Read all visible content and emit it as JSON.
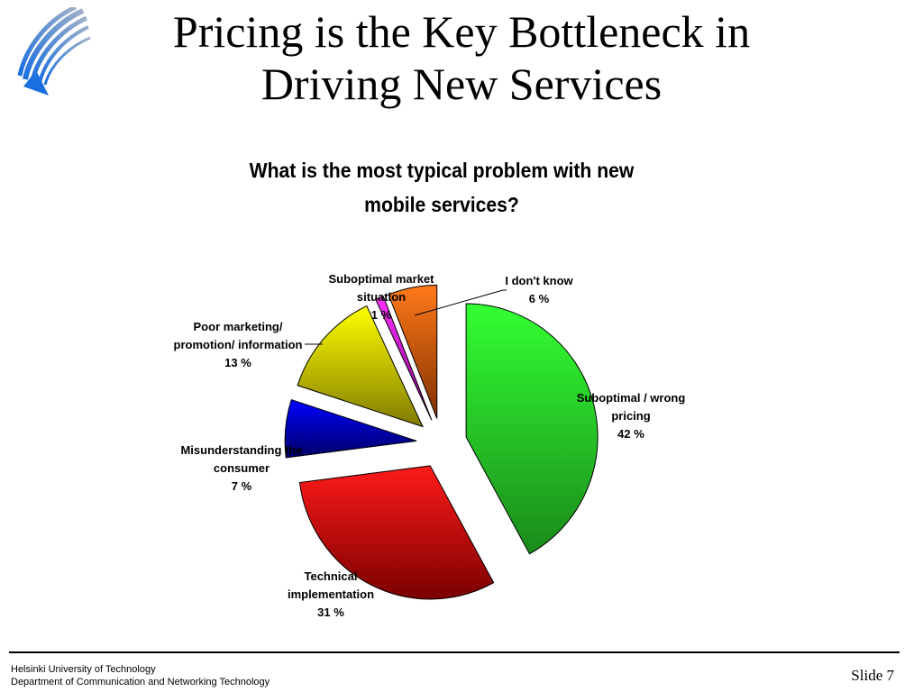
{
  "slide": {
    "title_lines": [
      "Pricing is the Key Bottleneck in",
      "Driving New Services"
    ],
    "footer": {
      "university": "Helsinki University of Technology",
      "department": "Department of Communication and Networking Technology",
      "slide_label": "Slide 7"
    },
    "logo_icon": "university-logo-icon"
  },
  "chart_data": {
    "type": "pie",
    "title_lines": [
      "What is the most typical problem with new",
      "mobile services?"
    ],
    "exploded": true,
    "slices": [
      {
        "label_lines": [
          "Suboptimal / wrong",
          "pricing"
        ],
        "value_label": "42 %",
        "value": 42,
        "color_light": "#33ff33",
        "color_dark": "#1a8a1a"
      },
      {
        "label_lines": [
          "Technical",
          "implementation"
        ],
        "value_label": "31 %",
        "value": 31,
        "color_light": "#ff1a1a",
        "color_dark": "#7a0000"
      },
      {
        "label_lines": [
          "Misunderstanding the",
          "consumer"
        ],
        "value_label": "7 %",
        "value": 7,
        "color_light": "#0000ff",
        "color_dark": "#000066"
      },
      {
        "label_lines": [
          "Poor marketing/",
          "promotion/ information"
        ],
        "value_label": "13 %",
        "value": 13,
        "color_light": "#ffff00",
        "color_dark": "#807a00"
      },
      {
        "label_lines": [
          "Suboptimal market",
          "situation"
        ],
        "value_label": "1 %",
        "value": 1,
        "color_light": "#ff33ff",
        "color_dark": "#800080"
      },
      {
        "label_lines": [
          "I don't know"
        ],
        "value_label": "6 %",
        "value": 6,
        "color_light": "#ff7a1a",
        "color_dark": "#803000"
      }
    ]
  }
}
